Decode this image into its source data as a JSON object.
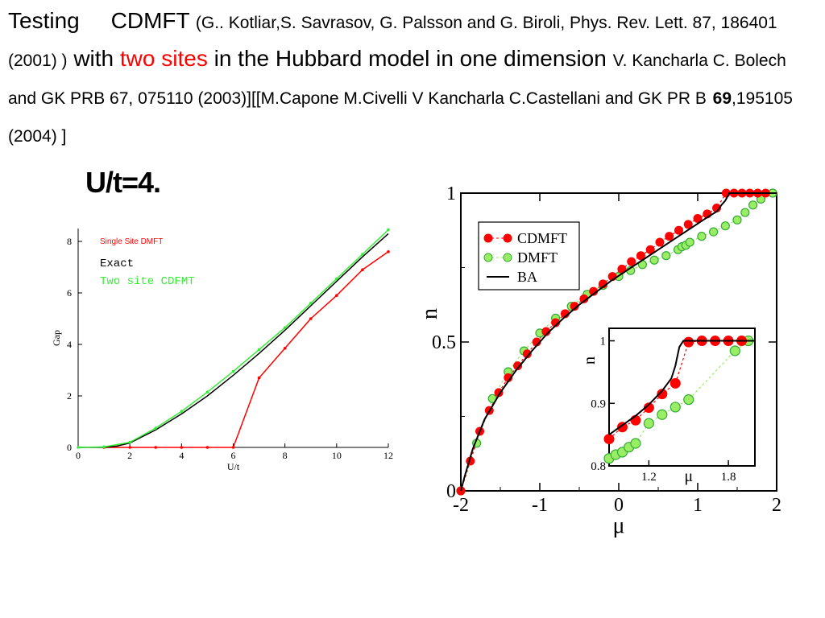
{
  "header": {
    "testing": "Testing",
    "cdmft": "CDMFT",
    "ref1": "(G.. Kotliar,S. Savrasov, G. Palsson and G. Biroli, Phys. Rev. Lett. 87, 186401 (2001) )",
    "with": "with",
    "two_sites": "two sites",
    "in_the": "in  the Hubbard model in one dimension",
    "ref2": "V. Kancharla C. Bolech and GK  PRB 67, 075110 (2003)][[M.Capone M.Civelli  V Kancharla C.Castellani and GK  PR B",
    "vol": "69",
    "pages": ",195105 (2004) ]"
  },
  "ut_label": "U/t=4.",
  "colors": {
    "red": "#ff0000",
    "green": "#33ee33",
    "light_green": "#99ee66",
    "black": "#000000"
  },
  "chart_data": [
    {
      "type": "line",
      "xlabel": "U/t",
      "ylabel": "Gap",
      "xlim": [
        0,
        12
      ],
      "ylim": [
        0,
        8.5
      ],
      "xticks": [
        "0",
        "2",
        "4",
        "6",
        "8",
        "10",
        "12"
      ],
      "yticks": [
        "0",
        "2",
        "4",
        "6",
        "8"
      ],
      "legend": [
        "Single Site DMFT",
        "Exact",
        "Two site CDFMT"
      ],
      "series": [
        {
          "name": "Single Site DMFT",
          "color": "#ff0000",
          "x": [
            1,
            2,
            3,
            4,
            5,
            6,
            7,
            8,
            9,
            10,
            11,
            12
          ],
          "y": [
            0,
            0,
            0,
            0,
            0,
            0,
            2.7,
            3.85,
            5.0,
            5.9,
            6.9,
            7.6
          ]
        },
        {
          "name": "Exact",
          "color": "#000000",
          "x": [
            0,
            1,
            1.5,
            2,
            3,
            4,
            5,
            6,
            7,
            8,
            9,
            10,
            11,
            12
          ],
          "y": [
            0,
            0.005,
            0.05,
            0.17,
            0.68,
            1.3,
            2.0,
            2.8,
            3.65,
            4.55,
            5.5,
            6.45,
            7.4,
            8.3
          ]
        },
        {
          "name": "Two site CDFMT",
          "color": "#33ee33",
          "x": [
            0,
            1,
            2,
            3,
            4,
            5,
            6,
            7,
            8,
            9,
            10,
            11,
            12
          ],
          "y": [
            0,
            0.02,
            0.2,
            0.75,
            1.4,
            2.15,
            2.95,
            3.8,
            4.65,
            5.6,
            6.55,
            7.5,
            8.45
          ]
        }
      ]
    },
    {
      "type": "scatter",
      "xlabel": "μ",
      "ylabel": "n",
      "xlim": [
        -2,
        2
      ],
      "ylim": [
        0,
        1
      ],
      "xticks": [
        "-2",
        "-1",
        "0",
        "1",
        "2"
      ],
      "yticks": [
        "0",
        "0.5",
        "1"
      ],
      "legend": [
        "CDMFT",
        "DMFT",
        "BA"
      ],
      "legend_position": "top-left",
      "series": [
        {
          "name": "CDMFT",
          "color": "#ff0000",
          "x": [
            -2.0,
            -1.88,
            -1.76,
            -1.64,
            -1.52,
            -1.4,
            -1.28,
            -1.16,
            -1.04,
            -0.92,
            -0.8,
            -0.68,
            -0.56,
            -0.44,
            -0.32,
            -0.2,
            -0.08,
            0.04,
            0.16,
            0.28,
            0.4,
            0.52,
            0.64,
            0.76,
            0.88,
            1.0,
            1.12,
            1.24,
            1.36,
            1.46,
            1.56,
            1.66,
            1.76,
            1.86
          ],
          "y": [
            0.0,
            0.1,
            0.2,
            0.27,
            0.33,
            0.38,
            0.42,
            0.46,
            0.5,
            0.535,
            0.565,
            0.595,
            0.62,
            0.645,
            0.67,
            0.695,
            0.72,
            0.745,
            0.77,
            0.79,
            0.81,
            0.835,
            0.855,
            0.875,
            0.895,
            0.915,
            0.93,
            0.95,
            1.0,
            1.0,
            1.0,
            1.0,
            1.0,
            1.0
          ]
        },
        {
          "name": "DMFT",
          "color": "#99ee66",
          "x": [
            -2.0,
            -1.8,
            -1.6,
            -1.4,
            -1.2,
            -1.0,
            -0.8,
            -0.6,
            -0.4,
            -0.2,
            0.0,
            0.15,
            0.3,
            0.45,
            0.6,
            0.75,
            0.8,
            0.85,
            0.9,
            1.05,
            1.2,
            1.35,
            1.5,
            1.6,
            1.7,
            1.8,
            1.95
          ],
          "y": [
            0.0,
            0.16,
            0.31,
            0.4,
            0.47,
            0.53,
            0.58,
            0.62,
            0.66,
            0.69,
            0.72,
            0.74,
            0.76,
            0.775,
            0.79,
            0.81,
            0.82,
            0.825,
            0.835,
            0.855,
            0.87,
            0.89,
            0.91,
            0.935,
            0.96,
            0.98,
            1.0
          ]
        },
        {
          "name": "BA",
          "color": "#000000",
          "x": [
            -2.0,
            -1.95,
            -1.85,
            -1.7,
            -1.5,
            -1.3,
            -1.1,
            -0.9,
            -0.7,
            -0.5,
            -0.3,
            -0.1,
            0.1,
            0.3,
            0.5,
            0.7,
            0.9,
            1.1,
            1.25,
            1.3,
            1.35,
            1.4,
            1.5,
            2.0
          ],
          "y": [
            0.0,
            0.05,
            0.14,
            0.24,
            0.33,
            0.405,
            0.47,
            0.53,
            0.58,
            0.625,
            0.665,
            0.705,
            0.74,
            0.775,
            0.81,
            0.845,
            0.88,
            0.915,
            0.94,
            0.96,
            0.975,
            1.0,
            1.0,
            1.0
          ]
        }
      ]
    },
    {
      "type": "scatter",
      "inset": true,
      "xlabel": "μ",
      "ylabel": "n",
      "xlim": [
        0.9,
        2.0
      ],
      "ylim": [
        0.8,
        1.02
      ],
      "xticks": [
        "1.2",
        "1.8"
      ],
      "yticks": [
        "0.8",
        "0.9",
        "1"
      ],
      "series": [
        {
          "name": "CDMFT",
          "color": "#ff0000",
          "x": [
            0.9,
            1.0,
            1.1,
            1.2,
            1.3,
            1.4,
            1.5,
            1.6,
            1.7,
            1.8,
            1.9
          ],
          "y": [
            0.843,
            0.862,
            0.873,
            0.893,
            0.915,
            0.932,
            0.998,
            1.0,
            1.0,
            1.0,
            1.0
          ]
        },
        {
          "name": "DMFT",
          "color": "#99ee66",
          "x": [
            0.9,
            0.95,
            1.0,
            1.05,
            1.1,
            1.2,
            1.3,
            1.4,
            1.5,
            1.85,
            1.95
          ],
          "y": [
            0.812,
            0.818,
            0.822,
            0.83,
            0.836,
            0.868,
            0.882,
            0.894,
            0.906,
            0.984,
            1.0
          ]
        },
        {
          "name": "BA",
          "color": "#000000",
          "x": [
            0.9,
            1.0,
            1.1,
            1.2,
            1.3,
            1.37,
            1.4,
            1.43,
            1.46,
            2.0
          ],
          "y": [
            0.85,
            0.865,
            0.88,
            0.898,
            0.92,
            0.94,
            0.96,
            0.99,
            1.0,
            1.0
          ]
        }
      ]
    }
  ]
}
